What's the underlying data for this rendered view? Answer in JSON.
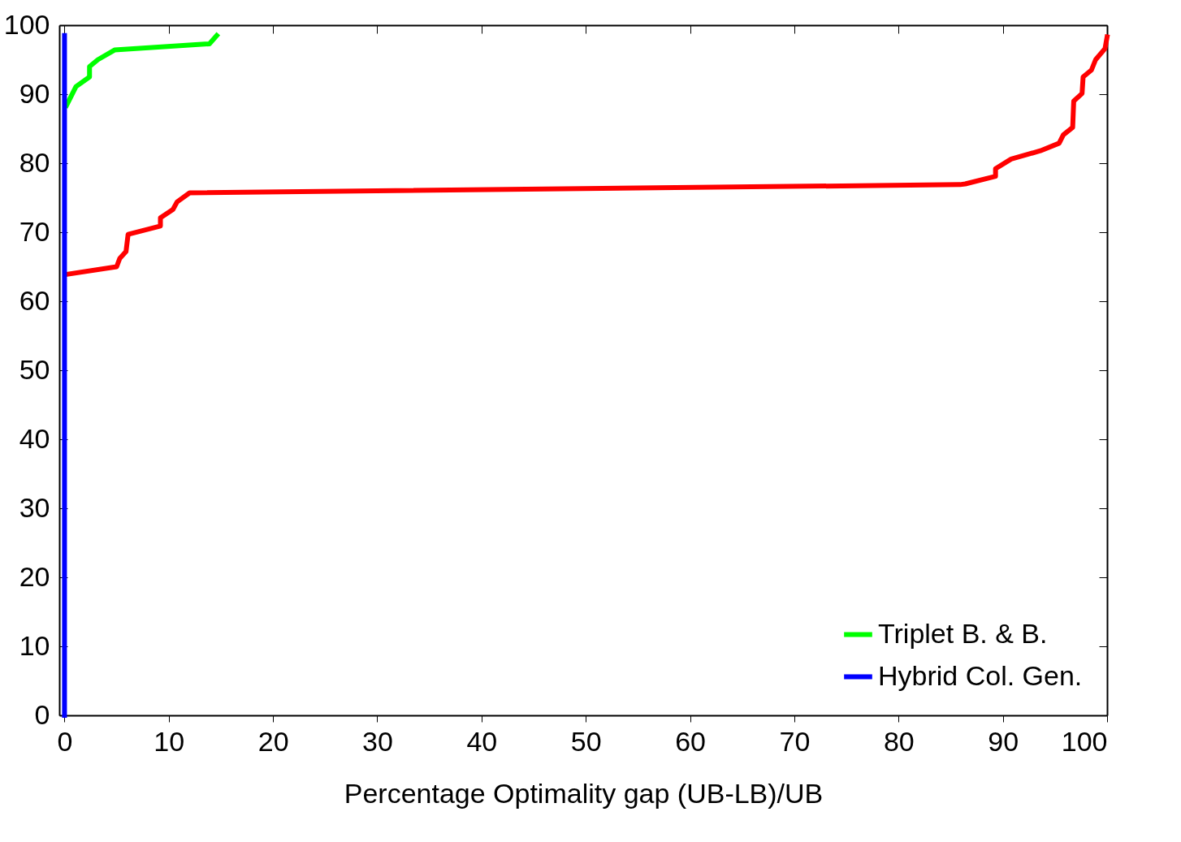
{
  "chart_data": {
    "type": "line",
    "xlabel": "Percentage Optimality gap (UB-LB)/UB",
    "xlim": [
      -0.5,
      100
    ],
    "xticks": [
      0,
      10,
      20,
      30,
      40,
      50,
      60,
      70,
      80,
      90,
      100
    ],
    "ylim": [
      0,
      100
    ],
    "yticks": [
      0,
      10,
      20,
      30,
      40,
      50,
      60,
      70,
      80,
      90,
      100
    ],
    "grid": false,
    "legend": "bottom right",
    "line_style": "solid",
    "series": [
      {
        "color": "#ff0000",
        "x": [
          0.2,
          5.0,
          5.3,
          5.9,
          6.1,
          9.2,
          9.2,
          10.4,
          10.8,
          12.0,
          85.9,
          86.4,
          89.3,
          89.3,
          90.8,
          93.6,
          95.4,
          95.8,
          96.7,
          96.8,
          97.6,
          97.7,
          98.5,
          98.9,
          99.8,
          100
        ],
        "values": [
          63.9,
          65.0,
          66.2,
          67.2,
          69.7,
          70.9,
          72.1,
          73.3,
          74.4,
          75.7,
          76.9,
          77.0,
          78.1,
          79.2,
          80.6,
          81.8,
          82.9,
          84.1,
          85.2,
          89.0,
          90.1,
          92.5,
          93.5,
          95.0,
          96.6,
          98.3
        ]
      },
      {
        "name": "Triplet B. & B.",
        "color": "#00ff00",
        "x": [
          0.2,
          1.1,
          2.4,
          2.4,
          3.2,
          4.8,
          13.9,
          14.6
        ],
        "values": [
          88.4,
          91.1,
          92.5,
          94.0,
          95.0,
          96.4,
          97.3,
          98.5
        ]
      },
      {
        "name": "Hybrid Col. Gen.",
        "color": "#0000ff",
        "x": [
          0,
          0
        ],
        "values": [
          0,
          98.5
        ]
      }
    ]
  }
}
